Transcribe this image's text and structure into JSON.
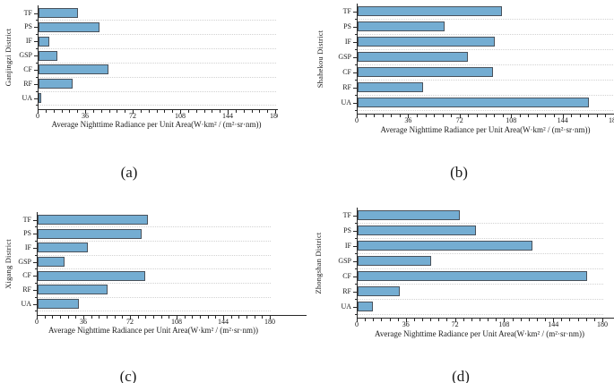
{
  "figure": {
    "background": "#ffffff",
    "description": "Four horizontal bar charts of average nighttime radiance per unit area by land-use class for four districts"
  },
  "colors": {
    "bar_fill": "#74add2",
    "bar_border": "#49525c",
    "axis": "#262626",
    "gridline": "#d2d2d2",
    "text": "#1a1a1a"
  },
  "chart_data": [
    {
      "type": "bar",
      "orientation": "horizontal",
      "panel": "(a)",
      "district": "Ganjingzi District",
      "categories": [
        "TF",
        "PS",
        "IF",
        "GSP",
        "CF",
        "RF",
        "UA"
      ],
      "values": [
        30,
        46,
        8,
        14,
        53,
        26,
        2
      ],
      "xlabel": "Average Nighttime Radiance per Unit Area(W·km² / (m²·sr·nm))",
      "xlim": [
        0,
        180
      ],
      "xticks": [
        0,
        36,
        72,
        108,
        144,
        180
      ],
      "minor_tick_step": 6,
      "grid": "dotted-horizontal"
    },
    {
      "type": "bar",
      "orientation": "horizontal",
      "panel": "(b)",
      "district": "Shahekou District",
      "categories": [
        "TF",
        "PS",
        "IF",
        "GSP",
        "CF",
        "RF",
        "UA"
      ],
      "values": [
        101,
        61,
        96,
        77,
        95,
        46,
        162
      ],
      "xlabel": "Average Nighttime Radiance per Unit Area(W·km² / (m²·sr·nm))",
      "xlim": [
        0,
        180
      ],
      "xticks": [
        0,
        36,
        72,
        108,
        144,
        180
      ],
      "minor_tick_step": 6,
      "grid": "dotted-horizontal"
    },
    {
      "type": "bar",
      "orientation": "horizontal",
      "panel": "(c)",
      "district": "Xigang District",
      "categories": [
        "TF",
        "PS",
        "IF",
        "GSP",
        "CF",
        "RF",
        "UA"
      ],
      "values": [
        85,
        80,
        39,
        21,
        83,
        54,
        32
      ],
      "xlabel": "Average Nighttime Radiance per Unit Area(W·km² / (m²·sr·nm))",
      "xlim": [
        0,
        180
      ],
      "xticks": [
        0,
        36,
        72,
        108,
        144,
        180
      ],
      "minor_tick_step": 6,
      "grid": "dotted-horizontal"
    },
    {
      "type": "bar",
      "orientation": "horizontal",
      "panel": "(d)",
      "district": "Zhongshan District",
      "categories": [
        "TF",
        "PS",
        "IF",
        "GSP",
        "CF",
        "RF",
        "UA"
      ],
      "values": [
        75,
        87,
        128,
        54,
        168,
        31,
        11
      ],
      "xlabel": "Average Nighttime Radiance per Unit Area(W·km² / (m²·sr·nm))",
      "xlim": [
        0,
        180
      ],
      "xticks": [
        0,
        36,
        72,
        108,
        144,
        180
      ],
      "minor_tick_step": 6,
      "grid": "dotted-horizontal"
    }
  ]
}
